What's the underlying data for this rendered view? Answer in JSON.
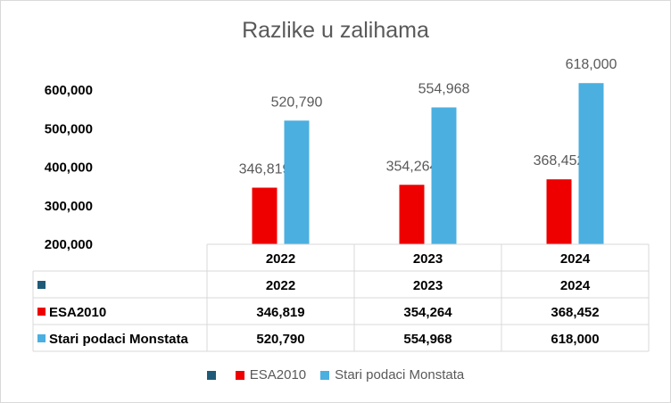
{
  "chart_data": {
    "type": "bar",
    "title": "Razlike u zalihama",
    "categories": [
      "2022",
      "2023",
      "2024"
    ],
    "series": [
      {
        "name": "",
        "values": [
          "2022",
          "2023",
          "2024"
        ],
        "color": "#1f5b78"
      },
      {
        "name": "ESA2010",
        "values": [
          346819,
          354264,
          368452
        ],
        "color": "#ee0000"
      },
      {
        "name": "Stari podaci Monstata",
        "values": [
          520790,
          554968,
          618000
        ],
        "color": "#4bafe0"
      }
    ],
    "yticks": [
      "200,000",
      "300,000",
      "400,000",
      "500,000",
      "600,000"
    ],
    "ylim": [
      200000,
      600000
    ],
    "grid": false,
    "legend": "bottom",
    "data_table": [
      [
        "",
        "2022",
        "2023",
        "2024"
      ],
      [
        "ESA2010",
        "346,819",
        "354,264",
        "368,452"
      ],
      [
        "Stari podaci Monstata",
        "520,790",
        "554,968",
        "618,000"
      ]
    ],
    "data_labels": {
      "ESA2010": [
        "346,819",
        "354,264",
        "368,452"
      ],
      "Stari podaci Monstata": [
        "520,790",
        "554,968",
        "618,000"
      ]
    }
  }
}
